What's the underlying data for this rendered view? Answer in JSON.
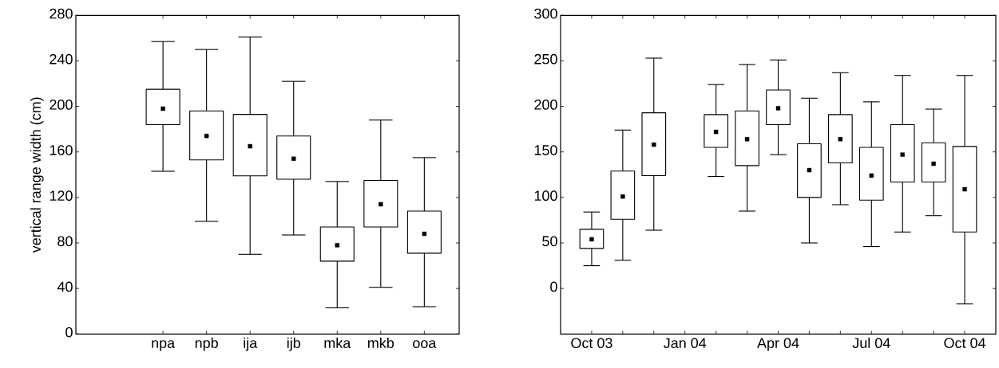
{
  "chart_data": [
    {
      "type": "box",
      "ylabel": "vertical range width (cm)",
      "categories": [
        "npa",
        "npb",
        "ija",
        "ijb",
        "mka",
        "mkb",
        "ooa"
      ],
      "ylim": [
        0,
        280
      ],
      "yticks": [
        0,
        40,
        80,
        120,
        160,
        200,
        240,
        280
      ],
      "grid": false,
      "marker": "square",
      "boxes": [
        {
          "low": 143,
          "q1": 184,
          "median": 198,
          "q3": 215,
          "high": 257
        },
        {
          "low": 99,
          "q1": 153,
          "median": 174,
          "q3": 196,
          "high": 250
        },
        {
          "low": 70,
          "q1": 139,
          "median": 165,
          "q3": 193,
          "high": 261
        },
        {
          "low": 87,
          "q1": 136,
          "median": 154,
          "q3": 174,
          "high": 222
        },
        {
          "low": 23,
          "q1": 64,
          "median": 78,
          "q3": 94,
          "high": 134
        },
        {
          "low": 41,
          "q1": 94,
          "median": 114,
          "q3": 135,
          "high": 188
        },
        {
          "low": 24,
          "q1": 71,
          "median": 88,
          "q3": 108,
          "high": 155
        }
      ]
    },
    {
      "type": "box",
      "x": [
        "2003-10",
        "2003-11",
        "2003-12",
        "2004-02",
        "2004-03",
        "2004-04",
        "2004-05",
        "2004-06",
        "2004-07",
        "2004-08",
        "2004-09",
        "2004-10"
      ],
      "xlim": [
        "2003-09",
        "2004-11"
      ],
      "xticks": [
        {
          "value": "2003-10",
          "label": "Oct 03"
        },
        {
          "value": "2003-11",
          "label": null
        },
        {
          "value": "2003-12",
          "label": null
        },
        {
          "value": "2004-01",
          "label": "Jan 04"
        },
        {
          "value": "2004-02",
          "label": null
        },
        {
          "value": "2004-03",
          "label": null
        },
        {
          "value": "2004-04",
          "label": "Apr 04"
        },
        {
          "value": "2004-05",
          "label": null
        },
        {
          "value": "2004-06",
          "label": null
        },
        {
          "value": "2004-07",
          "label": "Jul 04"
        },
        {
          "value": "2004-08",
          "label": null
        },
        {
          "value": "2004-09",
          "label": null
        },
        {
          "value": "2004-10",
          "label": "Oct 04"
        }
      ],
      "ylim": [
        -50,
        300
      ],
      "yticks": [
        0,
        50,
        100,
        150,
        200,
        250,
        300
      ],
      "grid": false,
      "marker": "square",
      "boxes": [
        {
          "low": 25,
          "q1": 44,
          "median": 54,
          "q3": 65,
          "high": 84
        },
        {
          "low": 31,
          "q1": 76,
          "median": 101,
          "q3": 129,
          "high": 174
        },
        {
          "low": 64,
          "q1": 124,
          "median": 158,
          "q3": 193,
          "high": 253
        },
        {
          "low": 123,
          "q1": 155,
          "median": 172,
          "q3": 191,
          "high": 224
        },
        {
          "low": 85,
          "q1": 135,
          "median": 164,
          "q3": 195,
          "high": 246
        },
        {
          "low": 147,
          "q1": 180,
          "median": 198,
          "q3": 218,
          "high": 251
        },
        {
          "low": 50,
          "q1": 100,
          "median": 130,
          "q3": 159,
          "high": 209
        },
        {
          "low": 92,
          "q1": 138,
          "median": 164,
          "q3": 191,
          "high": 237
        },
        {
          "low": 46,
          "q1": 97,
          "median": 124,
          "q3": 155,
          "high": 205
        },
        {
          "low": 62,
          "q1": 117,
          "median": 147,
          "q3": 180,
          "high": 234
        },
        {
          "low": 80,
          "q1": 117,
          "median": 137,
          "q3": 160,
          "high": 197
        },
        {
          "low": -17,
          "q1": 62,
          "median": 109,
          "q3": 156,
          "high": 234
        }
      ]
    }
  ]
}
